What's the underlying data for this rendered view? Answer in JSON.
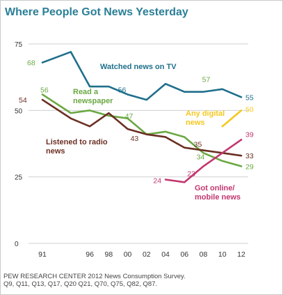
{
  "chart_data": {
    "type": "line",
    "title": "Where People Got News Yesterday",
    "x": [
      1991,
      1994,
      1996,
      1998,
      2000,
      2002,
      2004,
      2006,
      2008,
      2010,
      2012
    ],
    "xticks": [
      1991,
      1996,
      1998,
      2000,
      2002,
      2004,
      2006,
      2008,
      2010,
      2012
    ],
    "xtick_labels": [
      "91",
      "96",
      "98",
      "00",
      "02",
      "04",
      "06",
      "08",
      "10",
      "12"
    ],
    "ylim": [
      0,
      75
    ],
    "yticks": [
      0,
      25,
      50,
      75
    ],
    "ytick_labels": [
      "0",
      "25",
      "50",
      "75"
    ],
    "grid": false,
    "series": [
      {
        "name": "Watched news on TV",
        "color": "#1e6f8c",
        "x": [
          1991,
          1994,
          1996,
          1998,
          2000,
          2002,
          2004,
          2006,
          2008,
          2010,
          2012
        ],
        "values": [
          68,
          72,
          59,
          59,
          56,
          54,
          60,
          57,
          57,
          58,
          55
        ]
      },
      {
        "name": "Read a newspaper",
        "color": "#6aa842",
        "x": [
          1991,
          1994,
          1996,
          1998,
          2000,
          2002,
          2004,
          2006,
          2008,
          2010,
          2012
        ],
        "values": [
          56,
          49,
          50,
          48,
          47,
          41,
          42,
          40,
          34,
          31,
          29
        ]
      },
      {
        "name": "Listened to radio news",
        "color": "#6b2f23",
        "x": [
          1991,
          1994,
          1996,
          1998,
          2000,
          2002,
          2004,
          2006,
          2008,
          2010,
          2012
        ],
        "values": [
          54,
          47,
          44,
          49,
          43,
          41,
          40,
          36,
          35,
          34,
          33
        ]
      },
      {
        "name": "Got online/ mobile news",
        "color": "#c2366f",
        "x": [
          2004,
          2006,
          2008,
          2010,
          2012
        ],
        "values": [
          24,
          23,
          29,
          34,
          39
        ]
      },
      {
        "name": "Any digital news",
        "color": "#f4c81e",
        "x": [
          2010,
          2012
        ],
        "values": [
          44,
          50
        ]
      }
    ],
    "data_labels": [
      {
        "series": "Watched news on TV",
        "x": 1991,
        "y": 68,
        "text": "68"
      },
      {
        "series": "Watched news on TV",
        "x": 2000,
        "y": 56,
        "text": "56"
      },
      {
        "series": "Watched news on TV",
        "x": 2008,
        "y": 57,
        "text": "57"
      },
      {
        "series": "Watched news on TV",
        "x": 2012,
        "y": 55,
        "text": "55"
      },
      {
        "series": "Read a newspaper",
        "x": 1991,
        "y": 56,
        "text": "56"
      },
      {
        "series": "Read a newspaper",
        "x": 2000,
        "y": 47,
        "text": "47"
      },
      {
        "series": "Read a newspaper",
        "x": 2008,
        "y": 34,
        "text": "34"
      },
      {
        "series": "Read a newspaper",
        "x": 2012,
        "y": 29,
        "text": "29"
      },
      {
        "series": "Listened to radio news",
        "x": 1991,
        "y": 54,
        "text": "54"
      },
      {
        "series": "Listened to radio news",
        "x": 2000,
        "y": 43,
        "text": "43"
      },
      {
        "series": "Listened to radio news",
        "x": 2008,
        "y": 35,
        "text": "35"
      },
      {
        "series": "Listened to radio news",
        "x": 2012,
        "y": 33,
        "text": "33"
      },
      {
        "series": "Got online/ mobile news",
        "x": 2004,
        "y": 24,
        "text": "24"
      },
      {
        "series": "Got online/ mobile news",
        "x": 2006,
        "y": 23,
        "text": "23"
      },
      {
        "series": "Got online/ mobile news",
        "x": 2012,
        "y": 39,
        "text": "39"
      },
      {
        "series": "Any digital news",
        "x": 2012,
        "y": 50,
        "text": "50"
      }
    ],
    "series_labels": [
      {
        "series": "Watched news on TV",
        "lines": [
          "Watched news on TV"
        ]
      },
      {
        "series": "Read a newspaper",
        "lines": [
          "Read a",
          "newspaper"
        ]
      },
      {
        "series": "Listened to radio news",
        "lines": [
          "Listened to radio",
          "news"
        ]
      },
      {
        "series": "Any digital news",
        "lines": [
          "Any digital",
          "news"
        ]
      },
      {
        "series": "Got online/ mobile news",
        "lines": [
          "Got online/",
          "mobile news"
        ]
      }
    ]
  },
  "source_lines": [
    "PEW RESEARCH CENTER 2012 News Consumption Survey.",
    "Q9, Q11, Q13, Q17, Q20 Q21, Q70, Q75, Q82, Q87."
  ]
}
